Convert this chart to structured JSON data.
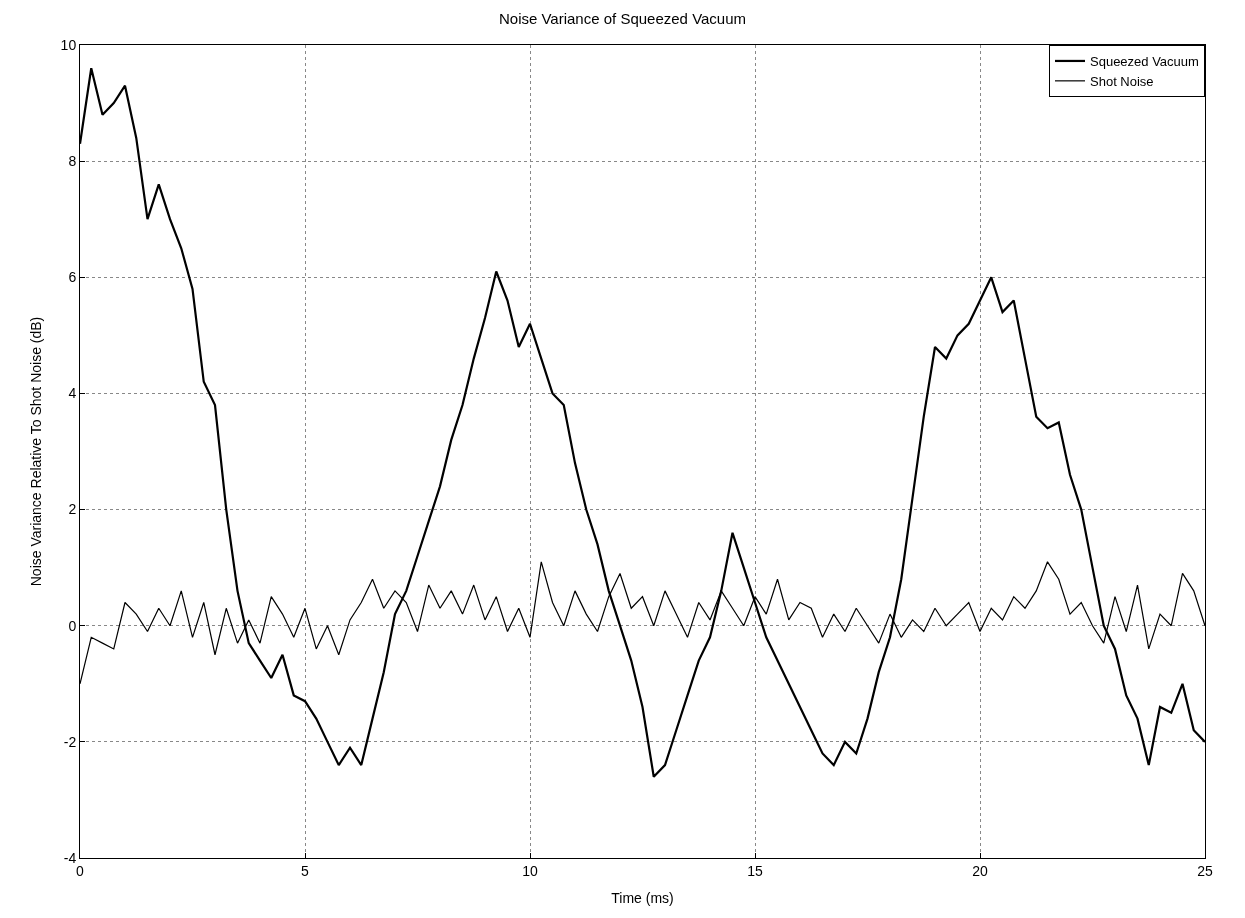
{
  "chart_data": {
    "type": "line",
    "title": "Noise Variance of Squeezed Vacuum",
    "xlabel": "Time (ms)",
    "ylabel": "Noise Variance Relative To Shot Noise (dB)",
    "x": [
      0,
      0.25,
      0.5,
      0.75,
      1,
      1.25,
      1.5,
      1.75,
      2,
      2.25,
      2.5,
      2.75,
      3,
      3.25,
      3.5,
      3.75,
      4,
      4.25,
      4.5,
      4.75,
      5,
      5.25,
      5.5,
      5.75,
      6,
      6.25,
      6.5,
      6.75,
      7,
      7.25,
      7.5,
      7.75,
      8,
      8.25,
      8.5,
      8.75,
      9,
      9.25,
      9.5,
      9.75,
      10,
      10.25,
      10.5,
      10.75,
      11,
      11.25,
      11.5,
      11.75,
      12,
      12.25,
      12.5,
      12.75,
      13,
      13.25,
      13.5,
      13.75,
      14,
      14.25,
      14.5,
      14.75,
      15,
      15.25,
      15.5,
      15.75,
      16,
      16.25,
      16.5,
      16.75,
      17,
      17.25,
      17.5,
      17.75,
      18,
      18.25,
      18.5,
      18.75,
      19,
      19.25,
      19.5,
      19.75,
      20,
      20.25,
      20.5,
      20.75,
      21,
      21.25,
      21.5,
      21.75,
      22,
      22.25,
      22.5,
      22.75,
      23,
      23.25,
      23.5,
      23.75,
      24,
      24.25,
      24.5,
      24.75,
      25
    ],
    "series": [
      {
        "name": "Squeezed Vacuum",
        "color": "#000000",
        "values": [
          8.3,
          9.6,
          8.8,
          9.0,
          9.3,
          8.4,
          7.0,
          7.6,
          7.0,
          6.5,
          5.8,
          4.2,
          3.8,
          2.0,
          0.6,
          -0.3,
          -0.6,
          -0.9,
          -0.5,
          -1.2,
          -1.3,
          -1.6,
          -2.0,
          -2.4,
          -2.1,
          -2.4,
          -1.6,
          -0.8,
          0.2,
          0.6,
          1.2,
          1.8,
          2.4,
          3.2,
          3.8,
          4.6,
          5.3,
          6.1,
          5.6,
          4.8,
          5.2,
          4.6,
          4.0,
          3.8,
          2.8,
          2.0,
          1.4,
          0.6,
          0.0,
          -0.6,
          -1.4,
          -2.6,
          -2.4,
          -1.8,
          -1.2,
          -0.6,
          -0.2,
          0.6,
          1.6,
          1.0,
          0.4,
          -0.2,
          -0.6,
          -1.0,
          -1.4,
          -1.8,
          -2.2,
          -2.4,
          -2.0,
          -2.2,
          -1.6,
          -0.8,
          -0.2,
          0.8,
          2.2,
          3.6,
          4.8,
          4.6,
          5.0,
          5.2,
          5.6,
          6.0,
          5.4,
          5.6,
          4.6,
          3.6,
          3.4,
          3.5,
          2.6,
          2.0,
          1.0,
          0.0,
          -0.4,
          -1.2,
          -1.6,
          -2.4,
          -1.4,
          -1.5,
          -1.0,
          -1.8,
          -2.0
        ]
      },
      {
        "name": "Shot Noise",
        "color": "#000000",
        "values": [
          -1.0,
          -0.2,
          -0.3,
          -0.4,
          0.4,
          0.2,
          -0.1,
          0.3,
          0.0,
          0.6,
          -0.2,
          0.4,
          -0.5,
          0.3,
          -0.3,
          0.1,
          -0.3,
          0.5,
          0.2,
          -0.2,
          0.3,
          -0.4,
          0.0,
          -0.5,
          0.1,
          0.4,
          0.8,
          0.3,
          0.6,
          0.4,
          -0.1,
          0.7,
          0.3,
          0.6,
          0.2,
          0.7,
          0.1,
          0.5,
          -0.1,
          0.3,
          -0.2,
          1.1,
          0.4,
          0.0,
          0.6,
          0.2,
          -0.1,
          0.5,
          0.9,
          0.3,
          0.5,
          0.0,
          0.6,
          0.2,
          -0.2,
          0.4,
          0.1,
          0.6,
          0.3,
          0.0,
          0.5,
          0.2,
          0.8,
          0.1,
          0.4,
          0.3,
          -0.2,
          0.2,
          -0.1,
          0.3,
          0.0,
          -0.3,
          0.2,
          -0.2,
          0.1,
          -0.1,
          0.3,
          0.0,
          0.2,
          0.4,
          -0.1,
          0.3,
          0.1,
          0.5,
          0.3,
          0.6,
          1.1,
          0.8,
          0.2,
          0.4,
          0.0,
          -0.3,
          0.5,
          -0.1,
          0.7,
          -0.4,
          0.2,
          0.0,
          0.9,
          0.6,
          0.0
        ]
      }
    ],
    "xlim": [
      0,
      25
    ],
    "xticks": [
      0,
      5,
      10,
      15,
      20,
      25
    ],
    "ylim": [
      -4,
      10
    ],
    "yticks": [
      -4,
      -2,
      0,
      2,
      4,
      6,
      8,
      10
    ],
    "grid": true,
    "legend": "top right",
    "line_style": "solid",
    "marker": "none"
  }
}
